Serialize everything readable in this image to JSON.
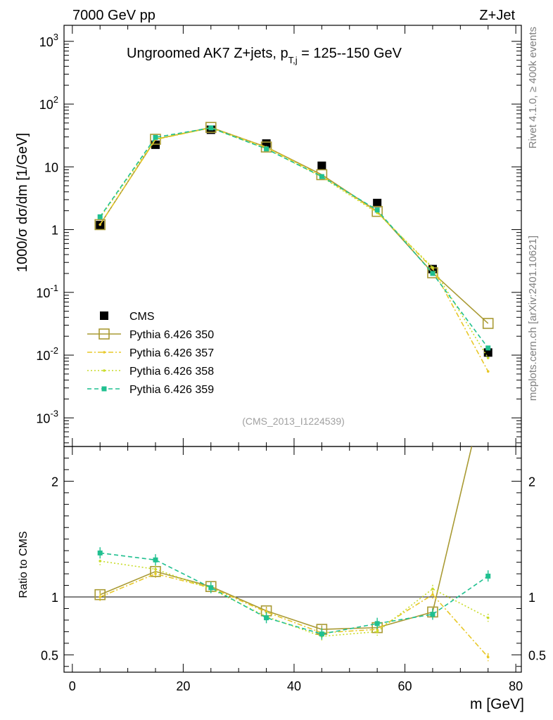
{
  "header": {
    "energy_label": "7000 GeV pp",
    "process_label": "Z+Jet",
    "rivet_label": "Rivet 4.1.0, ≥ 400k events",
    "mcplots_label": "mcplots.cern.ch [arXiv:2401.10621]"
  },
  "chart_data": {
    "type": "line",
    "title_main": "Ungroomed AK7 Z+jets, p",
    "title_sub": "T,j",
    "title_tail": " = 125--150 GeV",
    "analysis_id": "(CMS_2013_I1224539)",
    "ylabel": "1000/σ  dσ/dm [1/GeV]",
    "ratio_ylabel": "Ratio to CMS",
    "xlabel": "m [GeV]",
    "xlim": [
      -1.5,
      81
    ],
    "ylim_log": [
      0.00035,
      1800
    ],
    "ratio_ylim": [
      0.35,
      2.3
    ],
    "x_ticks": [
      "0",
      "20",
      "40",
      "60",
      "80"
    ],
    "y_ticks": [
      "10^-3",
      "10^-2",
      "10^-1",
      "1",
      "10",
      "10^2",
      "10^3"
    ],
    "ratio_ticks": [
      "0.5",
      "1",
      "2"
    ],
    "x": [
      5,
      15,
      25,
      35,
      45,
      55,
      65,
      75
    ],
    "data": {
      "name": "CMS",
      "values": [
        1.18,
        22.5,
        39.0,
        23.5,
        10.4,
        2.65,
        0.235,
        0.011
      ],
      "errors": [
        0.08,
        0.8,
        1.0,
        0.8,
        0.4,
        0.12,
        0.02,
        0.002
      ],
      "color": "#000000"
    },
    "series": [
      {
        "name": "Pythia 6.426 350",
        "values": [
          1.2,
          27.5,
          42.5,
          20.7,
          7.5,
          1.95,
          0.205,
          0.032
        ],
        "ratio": [
          1.02,
          1.22,
          1.09,
          0.88,
          0.72,
          0.735,
          0.87,
          2.9
        ],
        "color": "#a99a33",
        "style": "solid",
        "marker": "open-square"
      },
      {
        "name": "Pythia 6.426 357",
        "values": [
          1.2,
          27.2,
          42.0,
          20.5,
          7.2,
          1.9,
          0.24,
          0.0055
        ],
        "ratio": [
          1.0,
          1.2,
          1.08,
          0.87,
          0.69,
          0.72,
          1.02,
          0.48
        ],
        "color": "#e8c828",
        "style": "dashdot",
        "marker": "small-dot"
      },
      {
        "name": "Pythia 6.426 358",
        "values": [
          1.55,
          27.8,
          41.5,
          19.5,
          6.9,
          1.85,
          0.25,
          0.009
        ],
        "ratio": [
          1.31,
          1.24,
          1.07,
          0.83,
          0.66,
          0.7,
          1.07,
          0.82
        ],
        "color": "#c8dc28",
        "style": "dotted",
        "marker": "small-dot"
      },
      {
        "name": "Pythia 6.426 359",
        "values": [
          1.6,
          29.5,
          41.8,
          19.3,
          7.0,
          2.05,
          0.2,
          0.013
        ],
        "ratio": [
          1.38,
          1.32,
          1.08,
          0.82,
          0.68,
          0.77,
          0.85,
          1.18
        ],
        "color": "#20c090",
        "style": "dashed",
        "marker": "filled-square"
      }
    ]
  }
}
